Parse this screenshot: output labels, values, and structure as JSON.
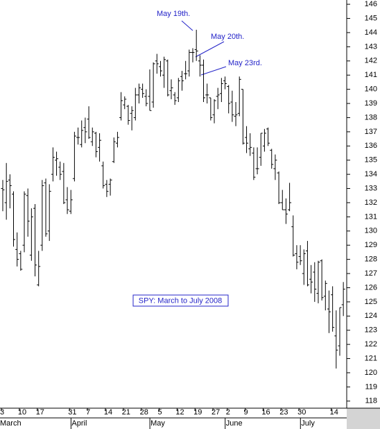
{
  "chart_data": {
    "type": "ohlc",
    "color": "#000000",
    "annotations": [
      "May 19th.",
      "May 20th.",
      "May 23rd.",
      "SPY: March to July 2008"
    ],
    "ylim": [
      117.5,
      146.3
    ],
    "yticks": [
      118,
      119,
      120,
      121,
      122,
      123,
      124,
      125,
      126,
      127,
      128,
      129,
      130,
      131,
      132,
      133,
      134,
      135,
      136,
      137,
      138,
      139,
      140,
      141,
      142,
      143,
      144,
      145,
      146
    ],
    "categories": [
      "3",
      null,
      null,
      null,
      null,
      "10",
      null,
      null,
      null,
      null,
      "17",
      null,
      null,
      null,
      null,
      null,
      null,
      null,
      null,
      "31",
      null,
      null,
      null,
      null,
      "7",
      null,
      null,
      null,
      null,
      "14",
      null,
      null,
      null,
      null,
      "21",
      null,
      null,
      null,
      null,
      "28",
      null,
      null,
      null,
      null,
      "5",
      null,
      null,
      null,
      null,
      "12",
      null,
      null,
      null,
      null,
      "19",
      null,
      null,
      null,
      null,
      "27",
      null,
      null,
      null,
      "2",
      null,
      null,
      null,
      null,
      "9",
      null,
      null,
      null,
      null,
      "16",
      null,
      null,
      null,
      null,
      "23",
      null,
      null,
      null,
      null,
      "30",
      null,
      null,
      null,
      null,
      null,
      null,
      null,
      null,
      "14",
      null,
      null,
      null
    ],
    "months": [
      "March",
      null,
      null,
      null,
      null,
      null,
      null,
      null,
      null,
      null,
      null,
      null,
      null,
      null,
      null,
      null,
      null,
      null,
      null,
      null,
      "April",
      null,
      null,
      null,
      null,
      null,
      null,
      null,
      null,
      null,
      null,
      null,
      null,
      null,
      null,
      null,
      null,
      null,
      null,
      null,
      null,
      null,
      "May",
      null,
      null,
      null,
      null,
      null,
      null,
      null,
      null,
      null,
      null,
      null,
      null,
      null,
      null,
      null,
      null,
      null,
      null,
      null,
      null,
      "June",
      null,
      null,
      null,
      null,
      null,
      null,
      null,
      null,
      null,
      null,
      null,
      null,
      null,
      null,
      null,
      null,
      null,
      null,
      null,
      null,
      "July",
      null,
      null,
      null,
      null,
      null,
      null,
      null,
      null,
      null,
      null,
      null
    ],
    "open": [
      133.0,
      132.0,
      133.6,
      132.6,
      128.7,
      128.4,
      129.0,
      132.5,
      128.3,
      131.6,
      126.2,
      129.0,
      133.4,
      130.0,
      134.0,
      135.0,
      134.5,
      134.2,
      132.2,
      131.4,
      133.7,
      136.6,
      136.1,
      137.3,
      137.9,
      136.3,
      136.9,
      135.9,
      134.6,
      133.3,
      133.3,
      134.9,
      136.2,
      138.0,
      138.9,
      138.8,
      138.3,
      138.0,
      139.6,
      140.0,
      139.5,
      139.5,
      139.1,
      142.0,
      141.6,
      141.0,
      142.0,
      139.9,
      139.6,
      139.4,
      140.9,
      141.1,
      141.3,
      142.6,
      142.8,
      142.0,
      141.7,
      139.6,
      139.4,
      138.2,
      139.5,
      139.7,
      140.6,
      140.2,
      139.1,
      138.1,
      138.3,
      140.0,
      136.6,
      135.8,
      135.5,
      134.4,
      135.2,
      136.0,
      137.2,
      135.7,
      134.4,
      134.1,
      132.0,
      131.5,
      131.5,
      130.3,
      128.4,
      128.2,
      127.0,
      128.6,
      126.6,
      127.1,
      125.6,
      127.9,
      125.4,
      124.5,
      125.5,
      122.6,
      121.9,
      124.8
    ],
    "high": [
      133.6,
      134.8,
      134.0,
      132.8,
      129.9,
      128.6,
      132.8,
      133.0,
      131.6,
      131.9,
      128.6,
      133.6,
      133.7,
      133.3,
      135.9,
      135.6,
      134.9,
      134.8,
      133.1,
      132.9,
      137.0,
      137.3,
      137.8,
      138.0,
      138.8,
      137.3,
      137.0,
      136.9,
      134.9,
      133.6,
      133.7,
      136.6,
      137.0,
      139.8,
      139.5,
      138.9,
      138.8,
      140.1,
      140.4,
      140.4,
      140.0,
      141.4,
      141.9,
      142.5,
      142.0,
      142.3,
      142.1,
      140.7,
      139.8,
      140.8,
      141.3,
      142.0,
      142.8,
      142.9,
      144.2,
      142.4,
      142.1,
      140.4,
      139.4,
      139.3,
      140.1,
      140.8,
      140.9,
      140.3,
      139.9,
      139.1,
      140.9,
      140.0,
      137.4,
      136.9,
      135.9,
      135.9,
      136.9,
      137.2,
      137.3,
      135.8,
      135.4,
      134.2,
      132.9,
      132.3,
      133.4,
      131.1,
      129.0,
      129.0,
      128.7,
      129.3,
      127.6,
      127.8,
      127.9,
      128.0,
      126.5,
      125.8,
      126.1,
      124.4,
      124.6,
      126.4
    ],
    "low": [
      131.4,
      130.8,
      131.6,
      128.9,
      127.5,
      127.2,
      128.5,
      129.6,
      127.9,
      126.8,
      126.1,
      128.6,
      129.6,
      129.3,
      133.5,
      133.9,
      133.6,
      131.9,
      131.2,
      131.2,
      133.5,
      136.1,
      135.9,
      136.2,
      136.5,
      136.0,
      135.2,
      134.9,
      133.0,
      132.4,
      132.5,
      134.8,
      135.9,
      137.8,
      138.6,
      137.5,
      137.1,
      137.8,
      139.0,
      139.4,
      138.8,
      138.5,
      138.7,
      141.1,
      140.9,
      140.1,
      139.5,
      139.3,
      138.9,
      139.1,
      139.9,
      140.7,
      140.9,
      141.9,
      142.0,
      140.9,
      139.1,
      139.0,
      137.8,
      137.6,
      138.6,
      139.1,
      140.0,
      138.3,
      137.7,
      137.4,
      138.1,
      136.1,
      135.5,
      135.3,
      133.6,
      134.0,
      134.6,
      135.6,
      136.0,
      134.4,
      133.6,
      131.9,
      131.5,
      130.5,
      131.4,
      128.2,
      127.3,
      127.6,
      126.2,
      126.1,
      125.6,
      125.0,
      124.9,
      125.1,
      124.4,
      122.8,
      122.9,
      120.3,
      121.2,
      124.0
    ],
    "close": [
      132.9,
      133.5,
      133.2,
      129.4,
      128.0,
      127.3,
      132.6,
      130.7,
      131.0,
      127.6,
      127.5,
      133.2,
      129.8,
      132.8,
      135.2,
      135.1,
      134.0,
      132.0,
      131.5,
      132.2,
      136.7,
      136.6,
      137.1,
      137.0,
      136.6,
      137.0,
      135.6,
      136.4,
      133.2,
      132.8,
      133.6,
      136.3,
      136.6,
      139.2,
      139.3,
      137.8,
      138.5,
      139.6,
      140.1,
      139.7,
      139.0,
      138.5,
      141.8,
      141.8,
      141.3,
      142.1,
      139.6,
      140.1,
      139.2,
      140.6,
      140.6,
      141.1,
      142.6,
      142.6,
      142.7,
      141.7,
      139.4,
      139.6,
      138.0,
      139.2,
      139.6,
      140.4,
      140.4,
      139.0,
      138.2,
      138.2,
      140.7,
      136.2,
      136.2,
      135.9,
      133.8,
      134.4,
      136.9,
      136.9,
      136.2,
      134.7,
      135.0,
      132.0,
      131.5,
      131.2,
      132.0,
      128.3,
      127.8,
      127.9,
      128.4,
      126.2,
      126.4,
      125.9,
      127.8,
      125.3,
      126.3,
      124.3,
      123.2,
      121.6,
      124.6,
      125.9
    ]
  }
}
